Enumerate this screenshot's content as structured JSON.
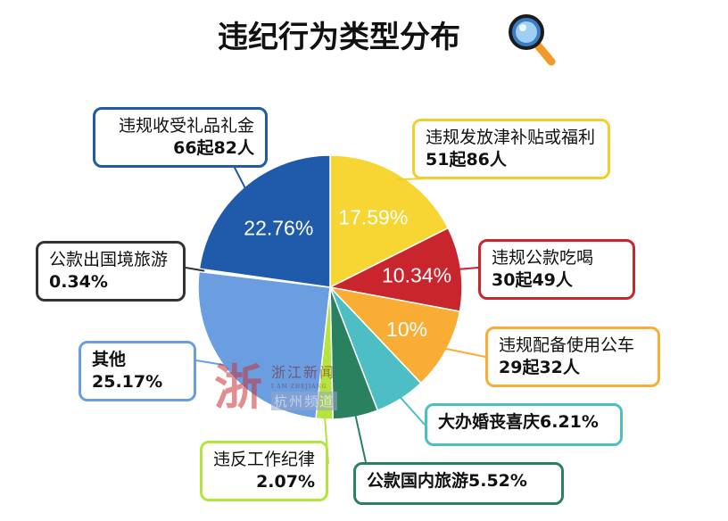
{
  "title": "违纪行为类型分布",
  "chart_data": {
    "type": "pie",
    "title": "违纪行为类型分布",
    "slices": [
      {
        "name": "违规发放津补贴或福利",
        "percent": 17.59,
        "label": "17.59%",
        "color": "#f7d532",
        "callout": [
          "违规发放津补贴或福利",
          "51起86人"
        ]
      },
      {
        "name": "违规公款吃喝",
        "percent": 10.34,
        "label": "10.34%",
        "color": "#c8262c",
        "callout": [
          "违规公款吃喝",
          "30起49人"
        ]
      },
      {
        "name": "违规配备使用公车",
        "percent": 10,
        "label": "10%",
        "color": "#f9ad35",
        "callout": [
          "违规配备使用公车",
          "29起32人"
        ]
      },
      {
        "name": "大办婚丧喜庆",
        "percent": 6.21,
        "label": "",
        "color": "#4dbfc4",
        "callout": [
          "大办婚丧喜庆6.21%"
        ]
      },
      {
        "name": "公款国内旅游",
        "percent": 5.52,
        "label": "",
        "color": "#2a8160",
        "callout": [
          "公款国内旅游5.52%"
        ]
      },
      {
        "name": "违反工作纪律",
        "percent": 2.07,
        "label": "",
        "color": "#b4e43e",
        "callout": [
          "违反工作纪律",
          "2.07%"
        ]
      },
      {
        "name": "其他",
        "percent": 25.17,
        "label": "",
        "color": "#6a9ee0",
        "callout": [
          "其他25.17%"
        ]
      },
      {
        "name": "公款出国境旅游",
        "percent": 0.34,
        "label": "",
        "color": "#ffffff",
        "callout": [
          "公款出国境旅游",
          "0.34%"
        ]
      },
      {
        "name": "违规收受礼品礼金",
        "percent": 22.76,
        "label": "22.76%",
        "color": "#1f5baa",
        "callout": [
          "违规收受礼品礼金",
          "66起82人"
        ]
      }
    ]
  },
  "watermark": {
    "logo": "浙",
    "line1": "浙江新闻",
    "line2": "I AM ZHEJIANG",
    "line3": "杭州频道"
  }
}
